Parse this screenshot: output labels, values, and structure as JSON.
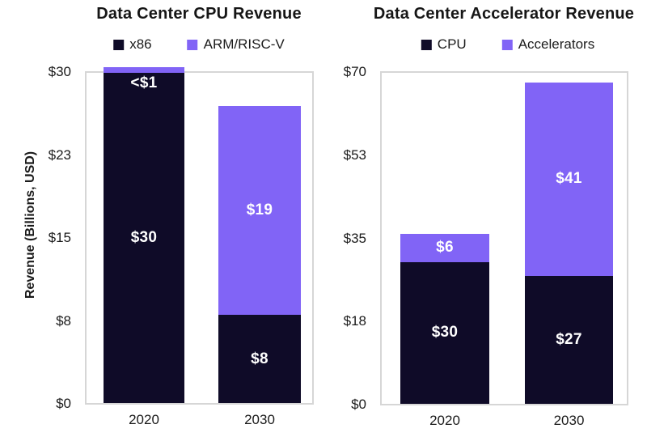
{
  "colors": {
    "dark_navy": "#0f0b28",
    "purple": "#8164f6",
    "plot_border": "#d6d6d6",
    "text": "#1b1b1b",
    "bar_label_text": "#ffffff",
    "background": "#ffffff"
  },
  "y_axis_label": "Revenue (Billions, USD)",
  "chart_data": [
    {
      "type": "bar",
      "stacked": true,
      "title": "Data Center CPU Revenue",
      "categories": [
        "2020",
        "2030"
      ],
      "series": [
        {
          "name": "x86",
          "color_key": "dark_navy",
          "values": [
            30,
            8
          ],
          "labels": [
            "$30",
            "$8"
          ]
        },
        {
          "name": "ARM/RISC-V",
          "color_key": "purple",
          "values": [
            0.5,
            19
          ],
          "labels": [
            "<$1",
            "$19"
          ]
        }
      ],
      "xlabel": "",
      "ylabel": "Revenue (Billions, USD)",
      "ylim": [
        0,
        30
      ],
      "y_ticks": [
        "$0",
        "$8",
        "$15",
        "$23",
        "$30"
      ],
      "grid": false,
      "legend_position": "top"
    },
    {
      "type": "bar",
      "stacked": true,
      "title": "Data Center Accelerator Revenue",
      "categories": [
        "2020",
        "2030"
      ],
      "series": [
        {
          "name": "CPU",
          "color_key": "dark_navy",
          "values": [
            30,
            27
          ],
          "labels": [
            "$30",
            "$27"
          ]
        },
        {
          "name": "Accelerators",
          "color_key": "purple",
          "values": [
            6,
            41
          ],
          "labels": [
            "$6",
            "$41"
          ]
        }
      ],
      "xlabel": "",
      "ylabel": "",
      "ylim": [
        0,
        70
      ],
      "y_ticks": [
        "$0",
        "$18",
        "$35",
        "$53",
        "$70"
      ],
      "grid": false,
      "legend_position": "top"
    }
  ]
}
